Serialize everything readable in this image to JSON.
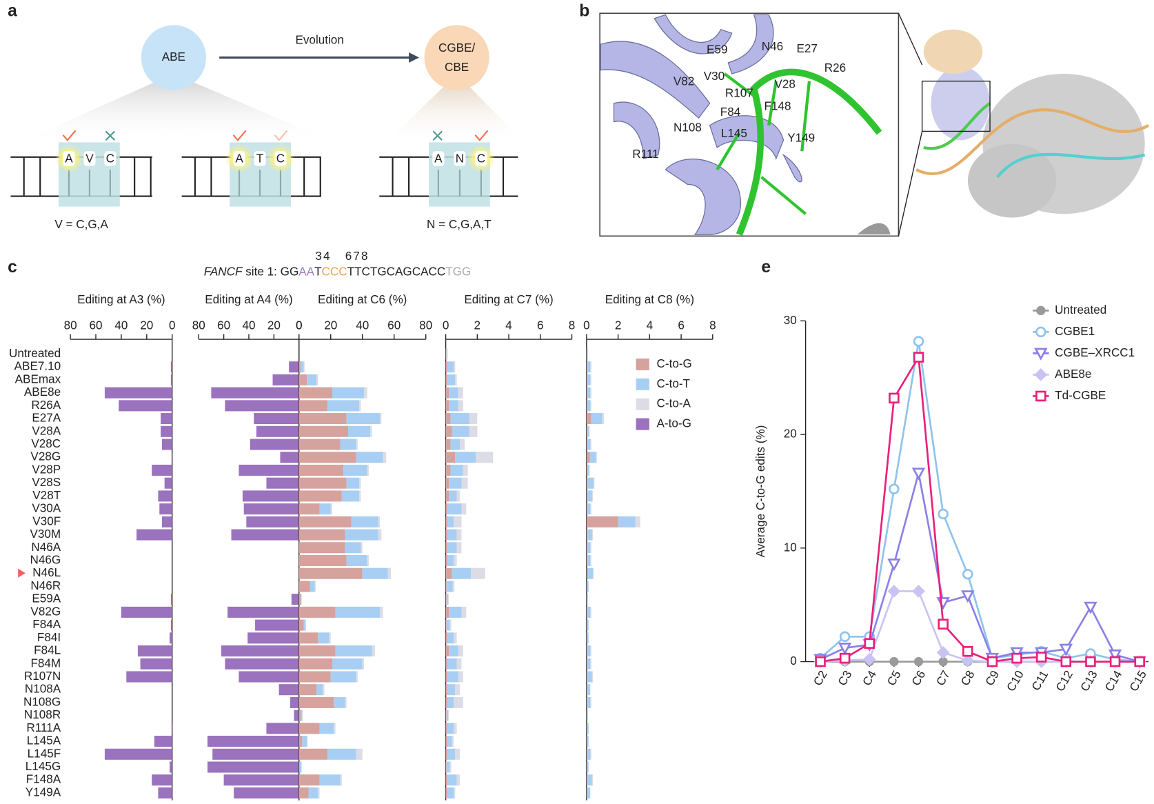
{
  "panel_a": {
    "label": "a",
    "abe": "ABE",
    "evolution": "Evolution",
    "cgbe": [
      "CGBE/",
      "CBE"
    ],
    "seq1": [
      "A",
      "V",
      "C"
    ],
    "seq2": [
      "A",
      "T",
      "C"
    ],
    "seq3": [
      "A",
      "N",
      "C"
    ],
    "v_def": "V = C,G,A",
    "n_def": "N = C,G,A,T"
  },
  "panel_b": {
    "label": "b",
    "residues": [
      "E59",
      "N46",
      "E27",
      "R26",
      "V82",
      "V30",
      "R107",
      "V28",
      "F84",
      "F148",
      "N108",
      "L145",
      "Y149",
      "R111"
    ]
  },
  "panel_c": {
    "label": "c",
    "positions": [
      "34",
      "678"
    ],
    "site_gene": "FANCF",
    "site_text": " site 1: ",
    "sequence": [
      "GG",
      "AA",
      "T",
      "CCC",
      "TTCTGCAGCACC",
      "TGG"
    ]
  },
  "chart_data": [
    {
      "type": "bar",
      "orientation": "horizontal",
      "title": "Editing at A3 (%)",
      "categories": [
        "Untreated",
        "ABE7.10",
        "ABEmax",
        "ABE8e",
        "R26A",
        "E27A",
        "V28A",
        "V28C",
        "V28G",
        "V28P",
        "V28S",
        "V28T",
        "V30A",
        "V30F",
        "V30M",
        "N46A",
        "N46G",
        "N46L",
        "N46R",
        "E59A",
        "V82G",
        "F84A",
        "F84I",
        "F84L",
        "F84M",
        "R107N",
        "N108A",
        "N108G",
        "N108R",
        "R111A",
        "L145A",
        "L145F",
        "L145G",
        "F148A",
        "Y149A"
      ],
      "series": [
        {
          "name": "A-to-G",
          "color": "#9b72bd",
          "values": [
            0,
            1,
            1,
            53,
            42,
            9,
            9,
            8,
            0.5,
            16,
            6,
            11,
            10,
            8,
            28,
            0,
            0,
            0,
            0,
            1,
            40,
            1,
            2,
            27,
            25,
            36,
            0,
            0,
            0,
            0.5,
            14,
            53,
            2,
            16,
            11
          ]
        }
      ],
      "xlim": [
        80,
        0
      ],
      "xticks": [
        80,
        60,
        40,
        20,
        0
      ]
    },
    {
      "type": "bar",
      "orientation": "horizontal",
      "title": "Editing at A4 (%)",
      "series": [
        {
          "color": "#9b72bd",
          "values": [
            0,
            8,
            21,
            70,
            59,
            36,
            34,
            39,
            15,
            48,
            26,
            45,
            44,
            42,
            54,
            0,
            0,
            0,
            0,
            6,
            57,
            35,
            41,
            62,
            59,
            48,
            16,
            7,
            4,
            26,
            73,
            69,
            73,
            60,
            52
          ]
        }
      ],
      "xlim": [
        80,
        0
      ],
      "xticks": [
        80,
        60,
        40,
        20,
        0
      ]
    },
    {
      "type": "bar",
      "orientation": "horizontal",
      "stacked": true,
      "title": "Editing at C6 (%)",
      "series": [
        {
          "name": "C-to-G",
          "color": "#d6a29d",
          "values": [
            0,
            1,
            5,
            21,
            18,
            30,
            31,
            26,
            36,
            28,
            30,
            27,
            13,
            33,
            29,
            29,
            30,
            40,
            7,
            1,
            23,
            3,
            12,
            23,
            21,
            20,
            11,
            22,
            1,
            13,
            2,
            18,
            0.5,
            13,
            6
          ]
        },
        {
          "name": "C-to-T",
          "color": "#a8cff3",
          "values": [
            0,
            2,
            6,
            20,
            20,
            21,
            14,
            10,
            17,
            15,
            8,
            11,
            7,
            17,
            21,
            10,
            13,
            16,
            3,
            0.5,
            28,
            1,
            7,
            23,
            19,
            16,
            4,
            7,
            1,
            9,
            3,
            18,
            1,
            13,
            6
          ]
        },
        {
          "name": "C-to-A",
          "color": "#dcdce6",
          "values": [
            0,
            0.5,
            1,
            2,
            1,
            1,
            1,
            1,
            2,
            1,
            1,
            1,
            1,
            1,
            2,
            1,
            1,
            2,
            0.5,
            0.3,
            2,
            0.5,
            1,
            2,
            1,
            1,
            1,
            1,
            0.5,
            1,
            0.5,
            4,
            0.3,
            1,
            1
          ]
        }
      ],
      "xlim": [
        0,
        80
      ],
      "xticks": [
        0,
        20,
        40,
        60,
        80
      ]
    },
    {
      "type": "bar",
      "orientation": "horizontal",
      "stacked": true,
      "title": "Editing at C7 (%)",
      "series": [
        {
          "color": "#d6a29d",
          "values": [
            0.05,
            0.1,
            0.1,
            0.2,
            0.2,
            0.3,
            0.4,
            0.3,
            0.6,
            0.3,
            0.2,
            0.2,
            0.1,
            0.1,
            0.1,
            0.1,
            0.1,
            0.4,
            0.05,
            0.05,
            0.2,
            0.05,
            0.1,
            0.2,
            0.1,
            0.1,
            0.1,
            0.1,
            0.05,
            0.1,
            0.1,
            0.1,
            0.05,
            0.1,
            0.1
          ]
        },
        {
          "color": "#a8cff3",
          "values": [
            0.05,
            0.4,
            0.5,
            0.6,
            0.6,
            1.2,
            1.1,
            0.6,
            1.3,
            0.8,
            0.8,
            0.5,
            0.9,
            0.4,
            0.6,
            0.6,
            0.4,
            1.2,
            0.4,
            0.1,
            0.8,
            0.2,
            0.4,
            0.6,
            0.6,
            0.7,
            0.5,
            0.4,
            0.1,
            0.4,
            0.3,
            0.5,
            0.2,
            0.6,
            0.4
          ]
        },
        {
          "color": "#dcdce6",
          "values": [
            0.02,
            0.1,
            0.1,
            0.3,
            0.3,
            0.5,
            0.5,
            0.3,
            1.1,
            0.3,
            0.4,
            0.2,
            0.3,
            0.5,
            0.3,
            0.3,
            0.2,
            0.9,
            0.1,
            0.05,
            0.3,
            0.1,
            0.2,
            0.3,
            0.3,
            0.3,
            0.3,
            0.6,
            0.05,
            0.2,
            0.1,
            0.3,
            0.1,
            0.2,
            0.1
          ]
        }
      ],
      "xlim": [
        0,
        8
      ],
      "xticks": [
        0,
        2,
        4,
        6,
        8
      ]
    },
    {
      "type": "bar",
      "orientation": "horizontal",
      "stacked": true,
      "title": "Editing at C8 (%)",
      "series": [
        {
          "color": "#d6a29d",
          "values": [
            0.02,
            0.05,
            0.05,
            0.05,
            0.05,
            0.3,
            0.05,
            0.05,
            0.2,
            0.05,
            0.05,
            0.05,
            0.05,
            2.0,
            0.05,
            0.05,
            0.05,
            0.1,
            0.02,
            0.02,
            0.05,
            0.02,
            0.02,
            0.05,
            0.05,
            0.05,
            0.02,
            0.05,
            0.02,
            0.02,
            0.02,
            0.05,
            0.02,
            0.05,
            0.02
          ]
        },
        {
          "color": "#a8cff3",
          "values": [
            0.05,
            0.2,
            0.2,
            0.2,
            0.2,
            0.7,
            0.1,
            0.2,
            0.4,
            0.1,
            0.4,
            0.3,
            0.2,
            1.1,
            0.3,
            0.2,
            0.2,
            0.3,
            0.1,
            0.05,
            0.2,
            0.1,
            0.1,
            0.2,
            0.2,
            0.3,
            0.2,
            0.2,
            0.05,
            0.1,
            0.1,
            0.2,
            0.1,
            0.3,
            0.2
          ]
        },
        {
          "color": "#dcdce6",
          "values": [
            0.02,
            0.05,
            0.05,
            0.05,
            0.05,
            0.1,
            0.05,
            0.05,
            0.05,
            0.05,
            0.05,
            0.05,
            0.05,
            0.3,
            0.05,
            0.05,
            0.05,
            0.05,
            0.02,
            0.02,
            0.05,
            0.02,
            0.02,
            0.05,
            0.05,
            0.05,
            0.02,
            0.05,
            0.02,
            0.02,
            0.02,
            0.05,
            0.02,
            0.05,
            0.02
          ]
        }
      ],
      "xlim": [
        0,
        8
      ],
      "xticks": [
        0,
        2,
        4,
        6,
        8
      ]
    },
    {
      "type": "line",
      "label": "e",
      "ylabel": "Average C-to-G edits (%)",
      "categories": [
        "C2",
        "C3",
        "C4",
        "C5",
        "C6",
        "C7",
        "C8",
        "C9",
        "C10",
        "C11",
        "C12",
        "C13",
        "C14",
        "C15"
      ],
      "series": [
        {
          "name": "Untreated",
          "color": "#9a9a9a",
          "marker": "dot",
          "values": [
            0,
            0,
            0,
            0,
            0,
            0,
            0,
            0,
            0,
            0,
            0,
            0,
            0,
            0
          ]
        },
        {
          "name": "CGBE1",
          "color": "#8ec3ee",
          "marker": "circle",
          "values": [
            0.3,
            2.2,
            2.2,
            15.2,
            28.2,
            13,
            7.7,
            0.3,
            0.6,
            0.9,
            0.3,
            0.7,
            0.2,
            0
          ]
        },
        {
          "name": "CGBE–XRCC1",
          "color": "#8a80e8",
          "marker": "triangle",
          "values": [
            0.2,
            1.2,
            1.5,
            8.6,
            16.6,
            5.2,
            5.8,
            0.3,
            0.8,
            0.8,
            1.1,
            4.8,
            0.6,
            0
          ]
        },
        {
          "name": "ABE8e",
          "color": "#c9c3f3",
          "marker": "diamond",
          "values": [
            0,
            0.1,
            0.2,
            6.2,
            6.2,
            0.8,
            0.1,
            0,
            0,
            0,
            0,
            0,
            0,
            0
          ]
        },
        {
          "name": "Td-CGBE",
          "color": "#e8207a",
          "marker": "square",
          "values": [
            0,
            0.3,
            1.6,
            23.2,
            26.8,
            3.3,
            0.9,
            0,
            0.3,
            0.4,
            0,
            0,
            0,
            0
          ]
        }
      ],
      "ylim": [
        0,
        30
      ],
      "yticks": [
        0,
        10,
        20,
        30
      ]
    }
  ]
}
